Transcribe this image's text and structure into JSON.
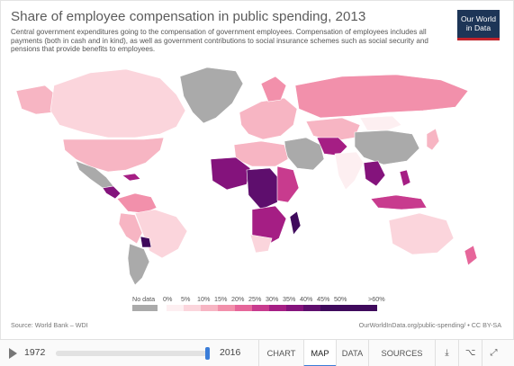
{
  "title": "Share of employee compensation in public spending, 2013",
  "subtitle": "Central government expenditures going to the compensation of government employees. Compensation of employees includes all payments (both in cash and in kind), as well as government contributions to social insurance schemes such as social security and pensions that provide benefits to employees.",
  "logo": {
    "line1": "Our World",
    "line2": "in Data"
  },
  "legend": {
    "nodata_label": "No data",
    "bins": [
      "0%",
      "5%",
      "10%",
      "15%",
      "20%",
      "25%",
      "30%",
      "35%",
      "40%",
      "45%",
      "50%",
      ">60%"
    ],
    "colors": [
      "#fdeff1",
      "#fbd5dc",
      "#f7b5c3",
      "#f290ab",
      "#e6669a",
      "#c83b8e",
      "#a51e84",
      "#84137c",
      "#5e0e6d",
      "#3f0a5c"
    ],
    "nodata_color": "#aaaaaa"
  },
  "source": "Source: World Bank – WDI",
  "url": "OurWorldInData.org/public-spending/ • CC BY-SA",
  "timeline": {
    "start": "1972",
    "end": "2016"
  },
  "tabs": {
    "chart": "CHART",
    "map": "MAP",
    "data": "DATA",
    "sources": "SOURCES"
  },
  "icons": {
    "download": "download-icon",
    "share": "share-icon",
    "expand": "expand-icon"
  },
  "colors": {
    "accent": "#3b7dd8",
    "logo_bg": "#1d3557",
    "logo_red": "#c1232b"
  }
}
